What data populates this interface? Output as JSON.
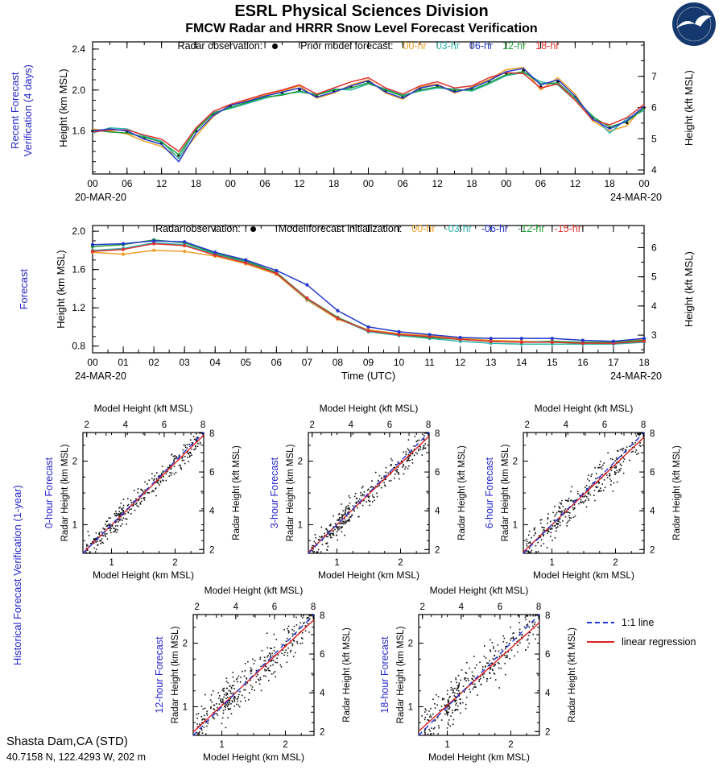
{
  "header": {
    "title": "ESRL Physical Sciences Division",
    "subtitle": "FMCW Radar and HRRR Snow Level Forecast Verification"
  },
  "labels": {
    "recent_panel": "Recent Forecast Verification (4 days)",
    "forecast_panel": "Forecast",
    "historical_panel": "Historical Forecast Verification (1-year)",
    "height_km": "Height (km MSL)",
    "height_kft": "Height (kft MSL)"
  },
  "scatter_legend": {
    "one_to_one": "1:1 line",
    "regression": "linear regression",
    "one_to_one_color": "#2233dd",
    "regression_color": "#dd2222"
  },
  "station": {
    "name": "Shasta Dam,CA (STD)",
    "coords": "40.7158 N, 122.4293 W, 202 m"
  },
  "chart_data": [
    {
      "id": "recent",
      "type": "line",
      "panel_label": "Recent Forecast Verification (4 days)",
      "ylabel_left": "Height (km MSL)",
      "ylabel_right": "Height (kft MSL)",
      "x_dates": {
        "start": "20-MAR-20",
        "end": "24-MAR-20"
      },
      "xlabel": "",
      "xlim": [
        0,
        96
      ],
      "ylim": [
        1.18,
        2.47
      ],
      "x_minor_step": 3,
      "x_ticks": [
        {
          "v": 0,
          "l": "00"
        },
        {
          "v": 6,
          "l": "06"
        },
        {
          "v": 12,
          "l": "12"
        },
        {
          "v": 18,
          "l": "18"
        },
        {
          "v": 24,
          "l": "00"
        },
        {
          "v": 30,
          "l": "06"
        },
        {
          "v": 36,
          "l": "12"
        },
        {
          "v": 42,
          "l": "18"
        },
        {
          "v": 48,
          "l": "00"
        },
        {
          "v": 54,
          "l": "06"
        },
        {
          "v": 60,
          "l": "12"
        },
        {
          "v": 66,
          "l": "18"
        },
        {
          "v": 72,
          "l": "00"
        },
        {
          "v": 78,
          "l": "06"
        },
        {
          "v": 84,
          "l": "12"
        },
        {
          "v": 90,
          "l": "18"
        },
        {
          "v": 96,
          "l": "00"
        }
      ],
      "y_ticks": [
        {
          "v": 1.6,
          "l": "1.6"
        },
        {
          "v": 2.0,
          "l": "2.0"
        },
        {
          "v": 2.4,
          "l": "2.4"
        }
      ],
      "y_minor_step": 0.1,
      "y2_ticks_kft": [
        4,
        5,
        6,
        7
      ],
      "y2_minor_step_kft": 0.5,
      "markers": false,
      "legend": {
        "obs_label": "Radar observation:",
        "forecast_label": "Prior model forecast:",
        "items": [
          {
            "label": "00-hr",
            "color": "#ef9f28"
          },
          {
            "label": "03-hr",
            "color": "#2fb3ab"
          },
          {
            "label": "06-hr",
            "color": "#2438cc"
          },
          {
            "label": "12-hr",
            "color": "#1f9e37"
          },
          {
            "label": "18-hr",
            "color": "#e03030"
          }
        ]
      },
      "x": [
        0,
        3,
        6,
        9,
        12,
        15,
        18,
        21,
        24,
        27,
        30,
        33,
        36,
        39,
        42,
        45,
        48,
        51,
        54,
        57,
        60,
        63,
        66,
        69,
        72,
        75,
        78,
        81,
        84,
        87,
        90,
        93,
        96
      ],
      "obs": {
        "label": "Radar observation",
        "color": "#000000",
        "values": [
          1.6,
          1.61,
          1.59,
          1.53,
          1.48,
          1.36,
          1.6,
          1.76,
          1.84,
          1.88,
          1.93,
          1.97,
          2.0,
          1.94,
          1.99,
          2.03,
          2.08,
          1.99,
          1.93,
          2.01,
          2.04,
          1.99,
          2.01,
          2.08,
          2.16,
          2.19,
          2.03,
          2.08,
          1.93,
          1.73,
          1.63,
          1.68,
          1.83
        ]
      },
      "series": [
        {
          "name": "00-hr",
          "color": "#ef9f28",
          "values": [
            1.62,
            1.6,
            1.57,
            1.5,
            1.45,
            1.34,
            1.55,
            1.74,
            1.86,
            1.9,
            1.95,
            1.99,
            2.04,
            1.92,
            1.97,
            2.05,
            2.1,
            1.97,
            1.91,
            2.03,
            2.06,
            1.97,
            2.03,
            2.1,
            2.2,
            2.22,
            2.0,
            2.12,
            1.96,
            1.7,
            1.6,
            1.65,
            1.85
          ]
        },
        {
          "name": "03-hr",
          "color": "#2fb3ab",
          "values": [
            1.58,
            1.63,
            1.62,
            1.55,
            1.5,
            1.33,
            1.62,
            1.78,
            1.82,
            1.87,
            1.92,
            1.96,
            1.98,
            1.96,
            2.01,
            2.0,
            2.06,
            2.01,
            1.95,
            1.99,
            2.02,
            2.01,
            1.99,
            2.06,
            2.14,
            2.17,
            2.08,
            2.05,
            1.9,
            1.75,
            1.58,
            1.72,
            1.8
          ]
        },
        {
          "name": "12-hr",
          "color": "#1f9e37",
          "values": [
            1.61,
            1.59,
            1.58,
            1.54,
            1.49,
            1.37,
            1.61,
            1.77,
            1.83,
            1.88,
            1.93,
            1.95,
            1.99,
            1.95,
            2.0,
            2.02,
            2.07,
            2.0,
            1.94,
            2.0,
            2.03,
            2.0,
            2.0,
            2.07,
            2.15,
            2.18,
            2.06,
            2.07,
            1.92,
            1.74,
            1.64,
            1.69,
            1.82
          ]
        },
        {
          "name": "18-hr",
          "color": "#e03030",
          "values": [
            1.59,
            1.61,
            1.61,
            1.56,
            1.52,
            1.4,
            1.63,
            1.79,
            1.86,
            1.91,
            1.96,
            2.0,
            2.05,
            1.96,
            2.02,
            2.08,
            2.12,
            2.02,
            1.96,
            2.04,
            2.08,
            2.02,
            2.04,
            2.12,
            2.17,
            2.16,
            2.02,
            2.06,
            1.9,
            1.71,
            1.66,
            1.73,
            1.86
          ]
        },
        {
          "name": "06-hr",
          "color": "#2438cc",
          "values": [
            1.6,
            1.62,
            1.6,
            1.52,
            1.47,
            1.3,
            1.58,
            1.75,
            1.85,
            1.89,
            1.94,
            1.98,
            2.02,
            1.93,
            1.98,
            2.04,
            2.09,
            1.98,
            1.92,
            2.02,
            2.05,
            1.98,
            2.02,
            2.09,
            2.18,
            2.21,
            2.05,
            2.1,
            1.94,
            1.72,
            1.62,
            1.7,
            1.84
          ]
        }
      ]
    },
    {
      "id": "forecast",
      "type": "line",
      "panel_label": "Forecast",
      "ylabel_left": "Height (km MSL)",
      "ylabel_right": "Height (kft MSL)",
      "x_dates": {
        "start": "24-MAR-20",
        "end": "24-MAR-20"
      },
      "xlabel": "Time (UTC)",
      "xlim": [
        0,
        18
      ],
      "ylim": [
        0.73,
        2.06
      ],
      "x_minor_step": 0.5,
      "x_ticks": [
        {
          "v": 0,
          "l": "00"
        },
        {
          "v": 1,
          "l": "01"
        },
        {
          "v": 2,
          "l": "02"
        },
        {
          "v": 3,
          "l": "03"
        },
        {
          "v": 4,
          "l": "04"
        },
        {
          "v": 5,
          "l": "05"
        },
        {
          "v": 6,
          "l": "06"
        },
        {
          "v": 7,
          "l": "07"
        },
        {
          "v": 8,
          "l": "08"
        },
        {
          "v": 9,
          "l": "09"
        },
        {
          "v": 10,
          "l": "10"
        },
        {
          "v": 11,
          "l": "11"
        },
        {
          "v": 12,
          "l": "12"
        },
        {
          "v": 13,
          "l": "13"
        },
        {
          "v": 14,
          "l": "14"
        },
        {
          "v": 15,
          "l": "15"
        },
        {
          "v": 16,
          "l": "16"
        },
        {
          "v": 17,
          "l": "17"
        },
        {
          "v": 18,
          "l": "18"
        }
      ],
      "y_ticks": [
        {
          "v": 0.8,
          "l": "0.8"
        },
        {
          "v": 1.2,
          "l": "1.2"
        },
        {
          "v": 1.6,
          "l": "1.6"
        },
        {
          "v": 2.0,
          "l": "2.0"
        }
      ],
      "y_minor_step": 0.1,
      "y2_ticks_kft": [
        3,
        4,
        5,
        6
      ],
      "y2_minor_step_kft": 0.5,
      "markers": true,
      "legend": {
        "obs_label": "Radar observation:",
        "forecast_label": "Model forecast initialization:",
        "items": [
          {
            "label": "00-hr",
            "color": "#ef9f28"
          },
          {
            "label": "-03-hr",
            "color": "#2fb3ab"
          },
          {
            "label": "-06-hr",
            "color": "#2438cc"
          },
          {
            "label": "-12-hr",
            "color": "#1f9e37"
          },
          {
            "label": "-15-hr",
            "color": "#e03030"
          }
        ]
      },
      "x": [
        0,
        1,
        2,
        3,
        4,
        5,
        6,
        7,
        8,
        9,
        10,
        11,
        12,
        13,
        14,
        15,
        16,
        17,
        18
      ],
      "series": [
        {
          "name": "00-hr",
          "color": "#ef9f28",
          "values": [
            1.78,
            1.76,
            1.8,
            1.79,
            1.74,
            1.66,
            1.55,
            1.28,
            1.08,
            0.97,
            0.93,
            0.91,
            0.88,
            0.86,
            0.85,
            0.84,
            0.83,
            0.84,
            0.87
          ]
        },
        {
          "name": "-03-hr",
          "color": "#2fb3ab",
          "values": [
            1.8,
            1.82,
            1.88,
            1.86,
            1.76,
            1.68,
            1.56,
            1.29,
            1.09,
            0.95,
            0.91,
            0.88,
            0.85,
            0.83,
            0.82,
            0.82,
            0.82,
            0.82,
            0.84
          ]
        },
        {
          "name": "-12-hr",
          "color": "#1f9e37",
          "values": [
            1.84,
            1.86,
            1.91,
            1.88,
            1.77,
            1.69,
            1.57,
            1.3,
            1.1,
            0.96,
            0.92,
            0.89,
            0.87,
            0.85,
            0.84,
            0.85,
            0.84,
            0.84,
            0.86
          ]
        },
        {
          "name": "-15-hr",
          "color": "#e03030",
          "values": [
            1.79,
            1.81,
            1.87,
            1.85,
            1.75,
            1.67,
            1.56,
            1.3,
            1.09,
            0.96,
            0.92,
            0.9,
            0.87,
            0.85,
            0.84,
            0.84,
            0.83,
            0.83,
            0.85
          ]
        },
        {
          "name": "-06-hr",
          "color": "#2438cc",
          "values": [
            1.86,
            1.87,
            1.9,
            1.89,
            1.78,
            1.7,
            1.59,
            1.44,
            1.17,
            1.0,
            0.95,
            0.92,
            0.89,
            0.88,
            0.88,
            0.88,
            0.86,
            0.85,
            0.88
          ]
        }
      ]
    },
    {
      "id": "h0",
      "type": "scatter",
      "panel_label": "0-hour Forecast",
      "xlabel_bottom": "Model Height (km MSL)",
      "xlabel_top": "Model Height (kft MSL)",
      "ylabel_left": "Radar Height (km MSL)",
      "ylabel_right": "Radar Height (kft MSL)",
      "xlim": [
        0.55,
        2.45
      ],
      "ylim": [
        0.55,
        2.45
      ],
      "km_ticks": [
        1,
        2
      ],
      "km_minor_step": 0.25,
      "kft_ticks": [
        2,
        4,
        6,
        8
      ],
      "kft_minor_step": 1,
      "n_points": 330,
      "noise_sd": 0.085,
      "seed": 101,
      "regression": {
        "slope": 0.975,
        "intercept": 0.02
      },
      "point_color": "#111111"
    },
    {
      "id": "h3",
      "type": "scatter",
      "panel_label": "3-hour Forecast",
      "xlabel_bottom": "Model Height (km MSL)",
      "xlabel_top": "Model Height (kft MSL)",
      "ylabel_left": "Radar Height (km MSL)",
      "ylabel_right": "Radar Height (kft MSL)",
      "xlim": [
        0.55,
        2.45
      ],
      "ylim": [
        0.55,
        2.45
      ],
      "km_ticks": [
        1,
        2
      ],
      "km_minor_step": 0.25,
      "kft_ticks": [
        2,
        4,
        6,
        8
      ],
      "kft_minor_step": 1,
      "n_points": 330,
      "noise_sd": 0.1,
      "seed": 202,
      "regression": {
        "slope": 0.96,
        "intercept": 0.04
      },
      "point_color": "#111111"
    },
    {
      "id": "h6",
      "type": "scatter",
      "panel_label": "6-hour Forecast",
      "xlabel_bottom": "Model Height (km MSL)",
      "xlabel_top": "Model Height (kft MSL)",
      "ylabel_left": "Radar Height (km MSL)",
      "ylabel_right": "Radar Height (kft MSL)",
      "xlim": [
        0.55,
        2.45
      ],
      "ylim": [
        0.55,
        2.45
      ],
      "km_ticks": [
        1,
        2
      ],
      "km_minor_step": 0.25,
      "kft_ticks": [
        2,
        4,
        6,
        8
      ],
      "kft_minor_step": 1,
      "n_points": 330,
      "noise_sd": 0.12,
      "seed": 303,
      "regression": {
        "slope": 0.95,
        "intercept": 0.05
      },
      "point_color": "#111111"
    },
    {
      "id": "h12",
      "type": "scatter",
      "panel_label": "12-hour Forecast",
      "xlabel_bottom": "Model Height (km MSL)",
      "xlabel_top": "Model Height (kft MSL)",
      "ylabel_left": "Radar Height (km MSL)",
      "ylabel_right": "Radar Height (kft MSL)",
      "xlim": [
        0.55,
        2.45
      ],
      "ylim": [
        0.55,
        2.45
      ],
      "km_ticks": [
        1,
        2
      ],
      "km_minor_step": 0.25,
      "kft_ticks": [
        2,
        4,
        6,
        8
      ],
      "kft_minor_step": 1,
      "n_points": 330,
      "noise_sd": 0.145,
      "seed": 404,
      "regression": {
        "slope": 0.93,
        "intercept": 0.09
      },
      "point_color": "#111111"
    },
    {
      "id": "h18",
      "type": "scatter",
      "panel_label": "18-hour Forecast",
      "xlabel_bottom": "Model Height (km MSL)",
      "xlabel_top": "Model Height (kft MSL)",
      "ylabel_left": "Radar Height (km MSL)",
      "ylabel_right": "Radar Height (kft MSL)",
      "xlim": [
        0.55,
        2.45
      ],
      "ylim": [
        0.55,
        2.45
      ],
      "km_ticks": [
        1,
        2
      ],
      "km_minor_step": 0.25,
      "kft_ticks": [
        2,
        4,
        6,
        8
      ],
      "kft_minor_step": 1,
      "n_points": 330,
      "noise_sd": 0.16,
      "seed": 505,
      "regression": {
        "slope": 0.9,
        "intercept": 0.12
      },
      "point_color": "#111111"
    }
  ]
}
